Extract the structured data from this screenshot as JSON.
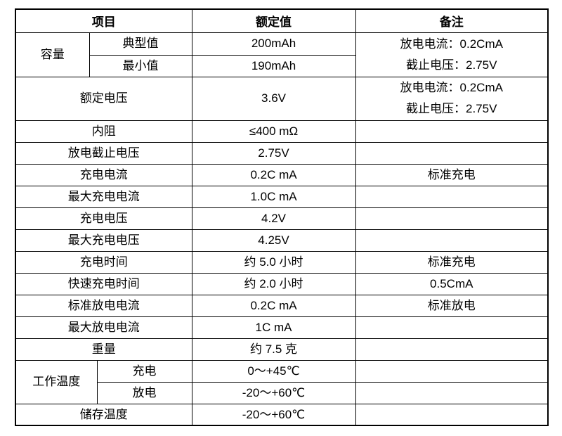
{
  "header": {
    "item": "项目",
    "rated": "额定值",
    "note": "备注"
  },
  "capacity": {
    "label": "容量",
    "typical": {
      "label": "典型值",
      "value": "200mAh"
    },
    "minimum": {
      "label": "最小值",
      "value": "190mAh"
    },
    "note": [
      "放电电流：0.2CmA",
      "截止电压：2.75V"
    ]
  },
  "rated_voltage": {
    "label": "额定电压",
    "value": "3.6V",
    "note": [
      "放电电流：0.2CmA",
      "截止电压：2.75V"
    ]
  },
  "rows": [
    {
      "label": "内阻",
      "value": "≤400 mΩ",
      "note": ""
    },
    {
      "label": "放电截止电压",
      "value": "2.75V",
      "note": ""
    },
    {
      "label": "充电电流",
      "value": "0.2C mA",
      "note": "标准充电"
    },
    {
      "label": "最大充电电流",
      "value": "1.0C mA",
      "note": ""
    },
    {
      "label": "充电电压",
      "value": "4.2V",
      "note": ""
    },
    {
      "label": "最大充电电压",
      "value": "4.25V",
      "note": ""
    },
    {
      "label": "充电时间",
      "value": "约 5.0 小时",
      "note": "标准充电"
    },
    {
      "label": "快速充电时间",
      "value": "约 2.0 小时",
      "note": "0.5CmA"
    },
    {
      "label": "标准放电电流",
      "value": "0.2C mA",
      "note": "标准放电"
    },
    {
      "label": "最大放电电流",
      "value": "1C mA",
      "note": ""
    },
    {
      "label": "重量",
      "value": "约  7.5  克",
      "note": ""
    }
  ],
  "operating_temp": {
    "label": "工作温度",
    "charge": {
      "label": "充电",
      "value": "0～+45℃"
    },
    "discharge": {
      "label": "放电",
      "value": "-20～+60℃"
    }
  },
  "storage_temp": {
    "label": "储存温度",
    "value": "-20～+60℃"
  }
}
